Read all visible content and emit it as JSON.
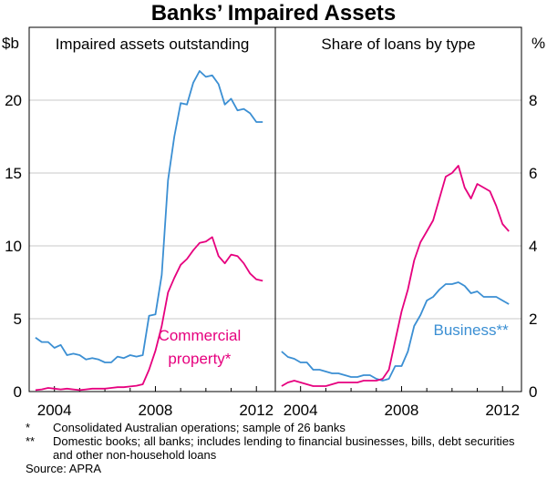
{
  "title": "Banks’ Impaired Assets",
  "chart_data": [
    {
      "type": "line",
      "title": "Impaired assets outstanding",
      "ylabel": "$b",
      "ylim": [
        0,
        25
      ],
      "yticks": [
        0,
        5,
        10,
        15,
        20
      ],
      "xlim": [
        2003.0,
        2012.75
      ],
      "xticks": [
        2004,
        2008,
        2012
      ],
      "grid": true,
      "series": [
        {
          "name": "",
          "color": "#3b8fd3",
          "x": [
            2003.25,
            2003.5,
            2003.75,
            2004.0,
            2004.25,
            2004.5,
            2004.75,
            2005.0,
            2005.25,
            2005.5,
            2005.75,
            2006.0,
            2006.25,
            2006.5,
            2006.75,
            2007.0,
            2007.25,
            2007.5,
            2007.75,
            2008.0,
            2008.25,
            2008.5,
            2008.75,
            2009.0,
            2009.25,
            2009.5,
            2009.75,
            2010.0,
            2010.25,
            2010.5,
            2010.75,
            2011.0,
            2011.25,
            2011.5,
            2011.75,
            2012.0,
            2012.25
          ],
          "y": [
            3.7,
            3.4,
            3.4,
            3.0,
            3.2,
            2.5,
            2.6,
            2.5,
            2.2,
            2.3,
            2.2,
            2.0,
            2.0,
            2.4,
            2.3,
            2.5,
            2.4,
            2.5,
            5.2,
            5.3,
            8.0,
            14.5,
            17.5,
            19.8,
            19.7,
            21.2,
            22.0,
            21.6,
            21.7,
            21.1,
            19.7,
            20.1,
            19.3,
            19.4,
            19.1,
            18.5,
            18.5
          ]
        },
        {
          "name": "Commercial property*",
          "color": "#e6007e",
          "x": [
            2003.25,
            2003.5,
            2003.75,
            2004.0,
            2004.25,
            2004.5,
            2004.75,
            2005.0,
            2005.25,
            2005.5,
            2005.75,
            2006.0,
            2006.25,
            2006.5,
            2006.75,
            2007.0,
            2007.25,
            2007.5,
            2007.75,
            2008.0,
            2008.25,
            2008.5,
            2008.75,
            2009.0,
            2009.25,
            2009.5,
            2009.75,
            2010.0,
            2010.25,
            2010.5,
            2010.75,
            2011.0,
            2011.25,
            2011.5,
            2011.75,
            2012.0,
            2012.25
          ],
          "y": [
            0.1,
            0.15,
            0.25,
            0.2,
            0.15,
            0.2,
            0.15,
            0.1,
            0.15,
            0.2,
            0.2,
            0.2,
            0.25,
            0.3,
            0.3,
            0.35,
            0.4,
            0.5,
            1.5,
            2.8,
            4.5,
            6.8,
            7.8,
            8.7,
            9.1,
            9.7,
            10.2,
            10.3,
            10.6,
            9.3,
            8.8,
            9.4,
            9.3,
            8.8,
            8.1,
            7.7,
            7.6
          ]
        }
      ],
      "annotations": [
        {
          "text": "Commercial",
          "x": 2009.75,
          "y": 3.5,
          "color": "#e6007e"
        },
        {
          "text": "property*",
          "x": 2009.75,
          "y": 1.9,
          "color": "#e6007e"
        }
      ]
    },
    {
      "type": "line",
      "title": "Share of loans by type",
      "ylabel": "%",
      "ylim": [
        0,
        10
      ],
      "yticks": [
        0,
        2,
        4,
        6,
        8
      ],
      "xlim": [
        2003.0,
        2012.75
      ],
      "xticks": [
        2004,
        2008,
        2012
      ],
      "grid": true,
      "series": [
        {
          "name": "Business**",
          "color": "#3b8fd3",
          "x": [
            2003.25,
            2003.5,
            2003.75,
            2004.0,
            2004.25,
            2004.5,
            2004.75,
            2005.0,
            2005.25,
            2005.5,
            2005.75,
            2006.0,
            2006.25,
            2006.5,
            2006.75,
            2007.0,
            2007.25,
            2007.5,
            2007.75,
            2008.0,
            2008.25,
            2008.5,
            2008.75,
            2009.0,
            2009.25,
            2009.5,
            2009.75,
            2010.0,
            2010.25,
            2010.5,
            2010.75,
            2011.0,
            2011.25,
            2011.5,
            2011.75,
            2012.0,
            2012.25
          ],
          "y": [
            1.1,
            0.95,
            0.9,
            0.8,
            0.8,
            0.6,
            0.6,
            0.55,
            0.5,
            0.5,
            0.45,
            0.4,
            0.4,
            0.45,
            0.45,
            0.35,
            0.3,
            0.35,
            0.7,
            0.7,
            1.1,
            1.8,
            2.1,
            2.5,
            2.6,
            2.8,
            2.95,
            2.95,
            3.0,
            2.9,
            2.7,
            2.75,
            2.6,
            2.6,
            2.6,
            2.5,
            2.4
          ]
        },
        {
          "name": "",
          "color": "#e6007e",
          "x": [
            2003.25,
            2003.5,
            2003.75,
            2004.0,
            2004.25,
            2004.5,
            2004.75,
            2005.0,
            2005.25,
            2005.5,
            2005.75,
            2006.0,
            2006.25,
            2006.5,
            2006.75,
            2007.0,
            2007.25,
            2007.5,
            2007.75,
            2008.0,
            2008.25,
            2008.5,
            2008.75,
            2009.0,
            2009.25,
            2009.5,
            2009.75,
            2010.0,
            2010.25,
            2010.5,
            2010.75,
            2011.0,
            2011.25,
            2011.5,
            2011.75,
            2012.0,
            2012.25
          ],
          "y": [
            0.15,
            0.25,
            0.3,
            0.25,
            0.2,
            0.15,
            0.15,
            0.15,
            0.2,
            0.25,
            0.25,
            0.25,
            0.25,
            0.3,
            0.3,
            0.3,
            0.35,
            0.6,
            1.4,
            2.2,
            2.8,
            3.6,
            4.1,
            4.4,
            4.7,
            5.3,
            5.9,
            6.0,
            6.2,
            5.6,
            5.3,
            5.7,
            5.6,
            5.5,
            5.1,
            4.6,
            4.4
          ]
        }
      ],
      "annotations": [
        {
          "text": "Business**",
          "x": 2010.75,
          "y": 1.55,
          "color": "#3b8fd3"
        }
      ]
    }
  ],
  "footnotes": [
    {
      "mark": "*",
      "text": "Consolidated Australian operations; sample of 26 banks"
    },
    {
      "mark": "**",
      "text": "Domestic books; all banks; includes lending to financial businesses, bills, debt securities and other non-household loans"
    }
  ],
  "source": "Source: APRA"
}
